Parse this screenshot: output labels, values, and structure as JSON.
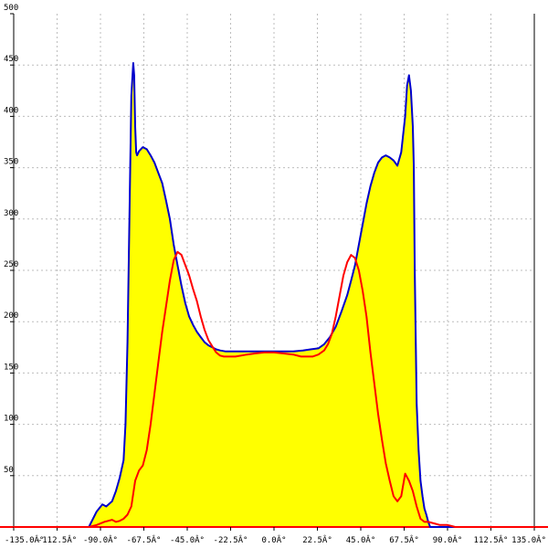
{
  "chart_data": {
    "type": "area",
    "xlim": [
      -135,
      135
    ],
    "ylim": [
      0,
      500
    ],
    "x_ticks": [
      -135,
      -112.5,
      -90,
      -67.5,
      -45,
      -22.5,
      0,
      22.5,
      45,
      67.5,
      90,
      112.5,
      135
    ],
    "x_tick_labels": [
      "-135.0Â°",
      "-112.5Â°",
      "-90.0Â°",
      "-67.5Â°",
      "-45.0Â°",
      "-22.5Â°",
      "0.0Â°",
      "22.5Â°",
      "45.0Â°",
      "67.5Â°",
      "90.0Â°",
      "112.5Â°",
      "135.0Â°"
    ],
    "y_ticks": [
      50,
      100,
      150,
      200,
      250,
      300,
      350,
      400,
      450,
      500
    ],
    "y_tick_labels": [
      "50",
      "100",
      "150",
      "200",
      "250",
      "300",
      "350",
      "400",
      "450",
      "500"
    ],
    "grid": true,
    "colors": {
      "fill": "#ffff00",
      "series_1": "#0000cc",
      "series_2": "#ff0000"
    },
    "series": [
      {
        "style": "filled area with line",
        "color": "#0000cc",
        "x": [
          -135,
          -96,
          -92,
          -89,
          -87,
          -84,
          -82,
          -80,
          -78,
          -77,
          -76,
          -75,
          -74,
          -73,
          -72.5,
          -72,
          -71.5,
          -71,
          -70,
          -68,
          -66,
          -64,
          -62,
          -60,
          -58,
          -56,
          -54,
          -52,
          -50,
          -48,
          -46,
          -44,
          -42,
          -40,
          -38,
          -36,
          -34,
          -32,
          -30,
          -28,
          -25,
          -22,
          -18,
          -14,
          -10,
          -5,
          0,
          5,
          10,
          15,
          19,
          23,
          26,
          29,
          32,
          35,
          38,
          40,
          42,
          44,
          46,
          48,
          50,
          52,
          54,
          56,
          58,
          60,
          62,
          64,
          66,
          68,
          69,
          70,
          71,
          72,
          72.5,
          73,
          74,
          75,
          76,
          77,
          78,
          79,
          80,
          81,
          82,
          84,
          86,
          88,
          90,
          92,
          94,
          96,
          100,
          135
        ],
        "values": [
          0,
          0,
          15,
          22,
          20,
          25,
          35,
          48,
          65,
          100,
          180,
          300,
          420,
          452,
          440,
          390,
          365,
          362,
          366,
          370,
          368,
          362,
          355,
          345,
          335,
          318,
          300,
          275,
          255,
          235,
          218,
          205,
          197,
          190,
          185,
          180,
          177,
          175,
          173,
          172,
          171,
          171,
          171,
          171,
          171,
          171,
          171,
          171,
          171,
          172,
          173,
          174,
          178,
          185,
          195,
          210,
          226,
          240,
          255,
          275,
          295,
          315,
          332,
          345,
          355,
          360,
          362,
          360,
          357,
          352,
          365,
          400,
          430,
          440,
          425,
          390,
          350,
          250,
          120,
          75,
          45,
          30,
          18,
          12,
          5,
          0,
          0,
          0,
          0,
          0,
          0,
          0,
          0,
          0,
          0,
          0
        ]
      },
      {
        "style": "line",
        "color": "#ff0000",
        "x": [
          -135,
          -96,
          -92,
          -88,
          -86,
          -84,
          -82,
          -80,
          -78,
          -76,
          -74,
          -72,
          -70,
          -68,
          -66,
          -64,
          -62,
          -60,
          -58,
          -56,
          -54,
          -52,
          -50,
          -48,
          -46,
          -44,
          -42,
          -40,
          -38,
          -36,
          -34,
          -32,
          -30,
          -28,
          -26,
          -24,
          -22,
          -20,
          -17,
          -14,
          -10,
          -5,
          0,
          5,
          10,
          14,
          17,
          20,
          23,
          26,
          28,
          30,
          32,
          34,
          36,
          38,
          40,
          42,
          44,
          46,
          48,
          50,
          52,
          54,
          56,
          58,
          60,
          62,
          64,
          66,
          68,
          70,
          72,
          74,
          76,
          78,
          80,
          82,
          84,
          86,
          88,
          90,
          92,
          94,
          96,
          98,
          100,
          135
        ],
        "values": [
          0,
          0,
          2,
          5,
          6,
          7,
          5,
          6,
          8,
          12,
          20,
          45,
          55,
          60,
          75,
          100,
          130,
          160,
          190,
          215,
          240,
          260,
          268,
          265,
          255,
          245,
          232,
          220,
          205,
          192,
          182,
          176,
          170,
          167,
          166,
          166,
          166,
          166,
          167,
          168,
          169,
          170,
          170,
          169,
          168,
          166,
          166,
          166,
          168,
          172,
          178,
          188,
          205,
          225,
          245,
          258,
          265,
          262,
          250,
          230,
          205,
          170,
          140,
          110,
          85,
          62,
          45,
          30,
          25,
          30,
          52,
          45,
          35,
          20,
          8,
          5,
          5,
          4,
          3,
          2,
          2,
          2,
          1,
          0,
          0,
          0,
          0,
          0
        ]
      }
    ]
  }
}
